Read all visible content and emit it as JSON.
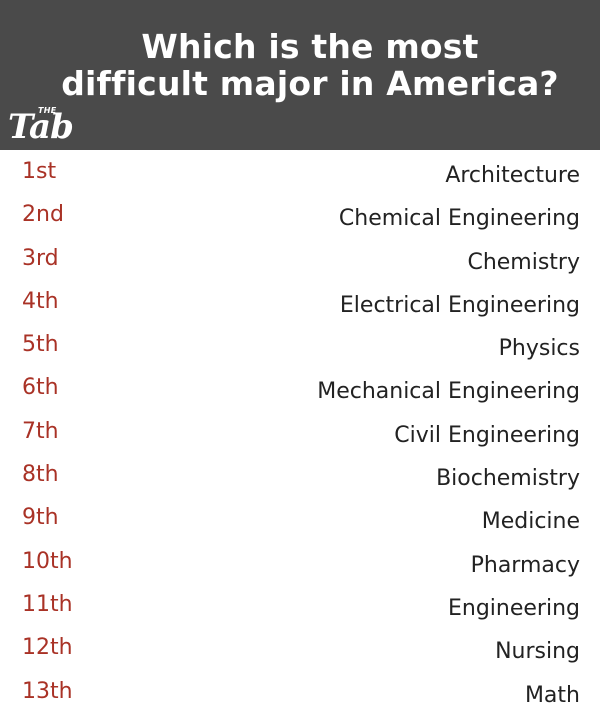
{
  "header": {
    "title_line1": "Which is the most",
    "title_line2": "difficult major in America?",
    "logo_small": "THE",
    "logo_main": "Tab"
  },
  "colors": {
    "header_bg": "#4a4a4a",
    "rank_text": "#a93226",
    "major_text": "#222222"
  },
  "rankings": [
    {
      "rank": "1st",
      "major": "Architecture"
    },
    {
      "rank": "2nd",
      "major": "Chemical Engineering"
    },
    {
      "rank": "3rd",
      "major": "Chemistry"
    },
    {
      "rank": "4th",
      "major": "Electrical Engineering"
    },
    {
      "rank": "5th",
      "major": "Physics"
    },
    {
      "rank": "6th",
      "major": "Mechanical Engineering"
    },
    {
      "rank": "7th",
      "major": "Civil Engineering"
    },
    {
      "rank": "8th",
      "major": "Biochemistry"
    },
    {
      "rank": "9th",
      "major": "Medicine"
    },
    {
      "rank": "10th",
      "major": "Pharmacy"
    },
    {
      "rank": "11th",
      "major": "Engineering"
    },
    {
      "rank": "12th",
      "major": "Nursing"
    },
    {
      "rank": "13th",
      "major": "Math"
    }
  ]
}
